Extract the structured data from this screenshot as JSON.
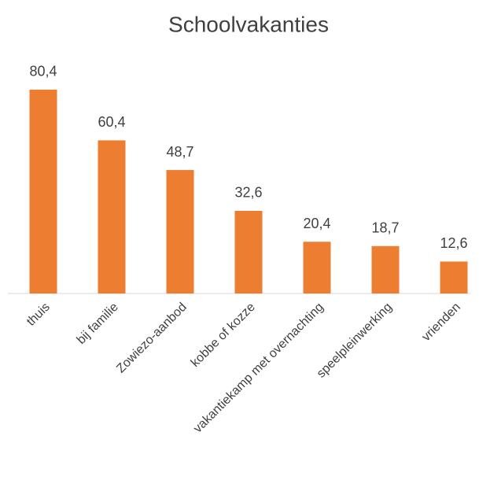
{
  "chart_data": {
    "type": "bar",
    "title": "Schoolvakanties",
    "categories": [
      "thuis",
      "bij familie",
      "Zowiezo-aanbod",
      "kobbe of kozze",
      "vakantiekamp met overnachting",
      "speelpleinwerking",
      "vrienden"
    ],
    "values": [
      80.4,
      60.4,
      48.7,
      32.6,
      20.4,
      18.7,
      12.6
    ],
    "value_labels": [
      "80,4",
      "60,4",
      "48,7",
      "32,6",
      "20,4",
      "18,7",
      "12,6"
    ],
    "color": "#ed7d31",
    "ylim": [
      0,
      90
    ]
  }
}
